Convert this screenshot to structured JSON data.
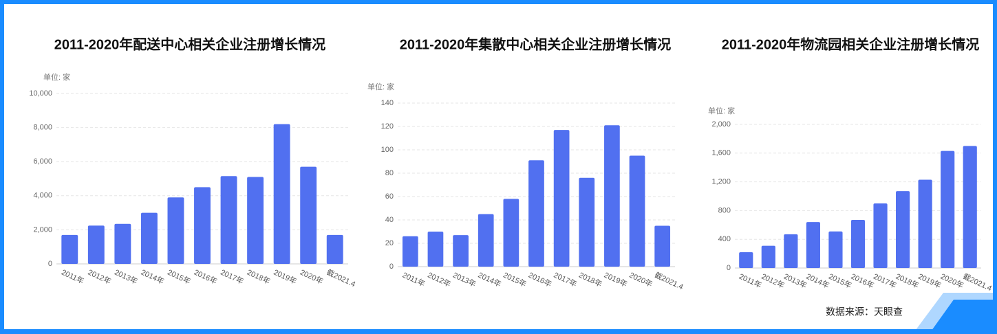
{
  "chart_data": [
    {
      "type": "bar",
      "title": "2011-2020年配送中心相关企业注册增长情况",
      "unit": "单位: 家",
      "categories": [
        "2011年",
        "2012年",
        "2013年",
        "2014年",
        "2015年",
        "2016年",
        "2017年",
        "2018年",
        "2019年",
        "2020年",
        "截2021.4"
      ],
      "values": [
        1700,
        2250,
        2350,
        3000,
        3900,
        4500,
        5150,
        5100,
        8200,
        5700,
        1700
      ],
      "color": "#5170f0",
      "ylim": [
        0,
        10000
      ],
      "yticks": [
        0,
        {
          "value": 2000,
          "label": "2,000"
        },
        {
          "value": 4000,
          "label": "4,000"
        },
        {
          "value": 6000,
          "label": "6,000"
        },
        {
          "value": 8000,
          "label": "8,000"
        },
        {
          "value": 10000,
          "label": "10,000"
        }
      ],
      "grid": true
    },
    {
      "type": "bar",
      "title": "2011-2020年集散中心相关企业注册增长情况",
      "unit": "单位: 家",
      "categories": [
        "2011年",
        "2012年",
        "2013年",
        "2014年",
        "2015年",
        "2016年",
        "2017年",
        "2018年",
        "2019年",
        "2020年",
        "截2021.4"
      ],
      "values": [
        26,
        30,
        27,
        45,
        58,
        91,
        117,
        76,
        121,
        95,
        35
      ],
      "color": "#5170f0",
      "ylim": [
        0,
        140
      ],
      "yticks": [
        0,
        20,
        40,
        60,
        80,
        100,
        120,
        140
      ],
      "grid": true
    },
    {
      "type": "bar",
      "title": "2011-2020年物流园相关企业注册增长情况",
      "unit": "单位: 家",
      "categories": [
        "2011年",
        "2012年",
        "2013年",
        "2014年",
        "2015年",
        "2016年",
        "2017年",
        "2018年",
        "2019年",
        "2020年",
        "截2021.4"
      ],
      "values": [
        220,
        310,
        470,
        640,
        510,
        670,
        900,
        1070,
        1230,
        1630,
        1700
      ],
      "color": "#5170f0",
      "ylim": [
        0,
        2000
      ],
      "yticks": [
        0,
        400,
        800,
        {
          "value": 1200,
          "label": "1,200"
        },
        {
          "value": 1600,
          "label": "1,600"
        },
        {
          "value": 2000,
          "label": "2,000"
        }
      ],
      "grid": true
    }
  ],
  "source": "数据来源：天眼查"
}
